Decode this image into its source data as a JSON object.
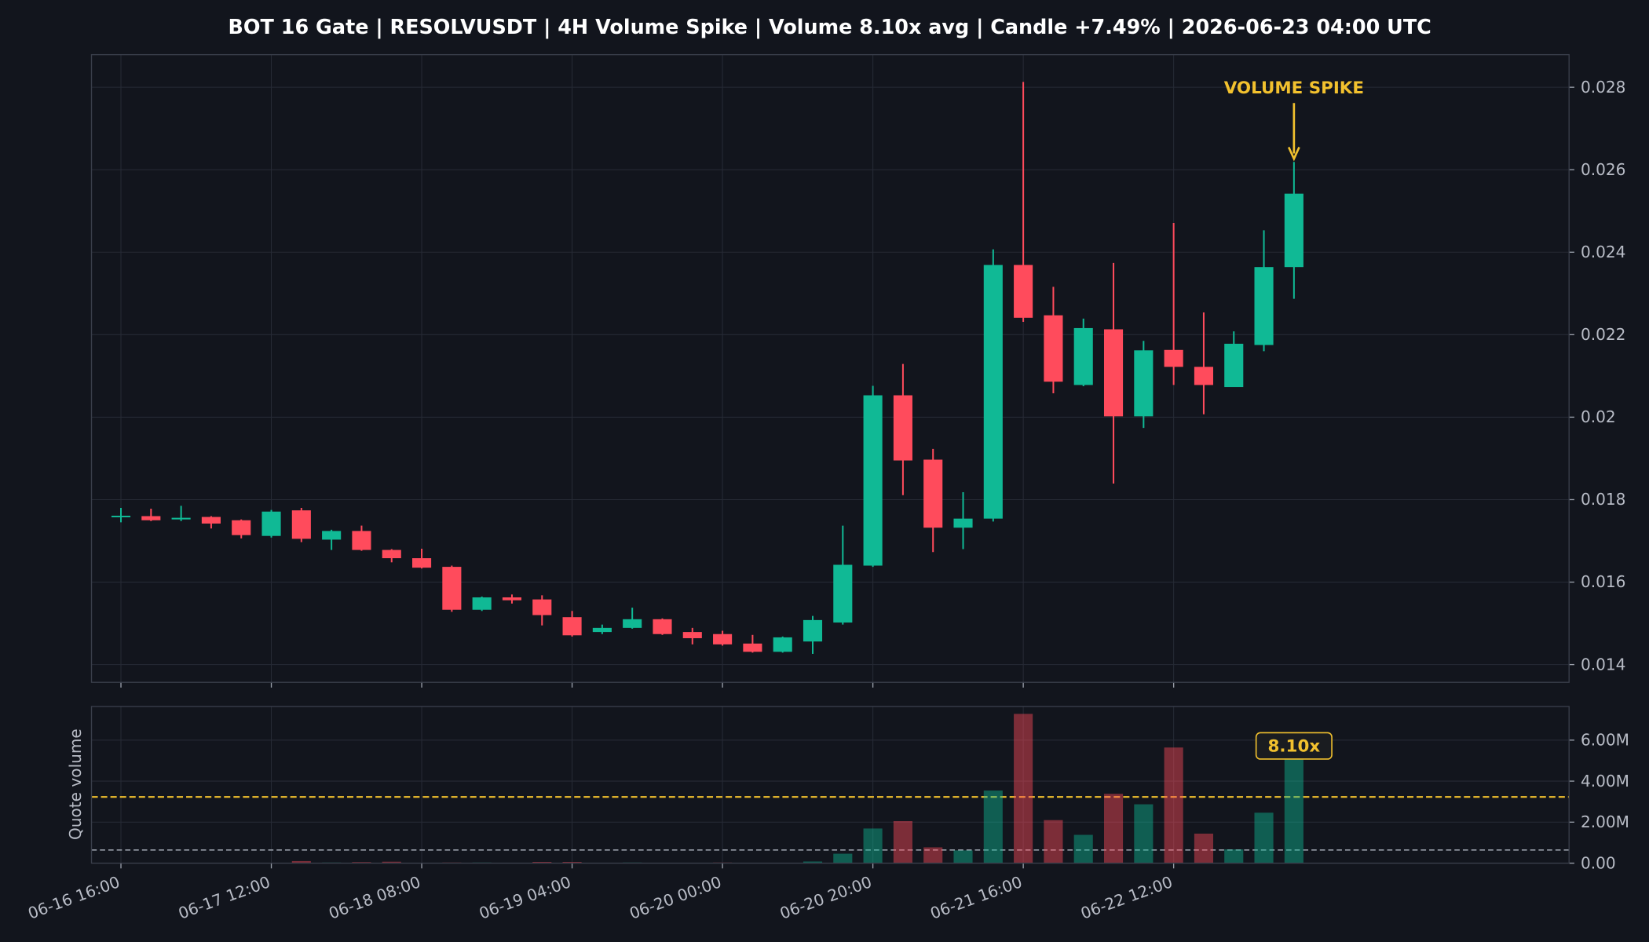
{
  "chart_data": {
    "type": "candlestick",
    "title": "BOT 16 Gate | RESOLVUSDT | 4H Volume Spike | Volume 8.10x avg | Candle +7.49% | 2026-06-23 04:00 UTC",
    "categories": [
      "06-16 16:00",
      null,
      null,
      null,
      null,
      "06-17 12:00",
      null,
      null,
      null,
      null,
      "06-18 08:00",
      null,
      null,
      null,
      null,
      "06-19 04:00",
      null,
      null,
      null,
      null,
      "06-20 00:00",
      null,
      null,
      null,
      null,
      "06-20 20:00",
      null,
      null,
      null,
      null,
      "06-21 16:00",
      null,
      null,
      null,
      null,
      "06-22 12:00",
      null,
      null,
      null,
      null
    ],
    "open": [
      0.01759,
      0.0176,
      0.01752,
      0.01758,
      0.0175,
      0.01712,
      0.01774,
      0.01703,
      0.01724,
      0.01678,
      0.01658,
      0.01637,
      0.01533,
      0.01563,
      0.01558,
      0.01515,
      0.01479,
      0.01489,
      0.0151,
      0.01479,
      0.01474,
      0.01451,
      0.01431,
      0.01456,
      0.01502,
      0.0164,
      0.02053,
      0.01897,
      0.01732,
      0.01754,
      0.02369,
      0.02247,
      0.02078,
      0.02213,
      0.02002,
      0.02163,
      0.02122,
      0.02073,
      0.02175,
      0.02364
    ],
    "high": [
      0.0178,
      0.01778,
      0.01785,
      0.0176,
      0.01752,
      0.01775,
      0.0178,
      0.01727,
      0.01737,
      0.0168,
      0.01681,
      0.0164,
      0.01565,
      0.0157,
      0.01568,
      0.0153,
      0.01497,
      0.01538,
      0.01512,
      0.01489,
      0.01482,
      0.01472,
      0.01468,
      0.01518,
      0.01737,
      0.02076,
      0.02129,
      0.01923,
      0.01818,
      0.02407,
      0.02813,
      0.02316,
      0.02239,
      0.02374,
      0.02185,
      0.02471,
      0.02254,
      0.02208,
      0.02453,
      0.02619
    ],
    "low": [
      0.01745,
      0.01748,
      0.01748,
      0.0173,
      0.01706,
      0.01708,
      0.01697,
      0.01678,
      0.01676,
      0.01648,
      0.01633,
      0.01528,
      0.0153,
      0.01548,
      0.01495,
      0.01468,
      0.01474,
      0.01487,
      0.01472,
      0.01449,
      0.01446,
      0.01429,
      0.01429,
      0.01426,
      0.01497,
      0.01637,
      0.01811,
      0.01673,
      0.0168,
      0.01747,
      0.02231,
      0.02058,
      0.02075,
      0.01839,
      0.01974,
      0.02078,
      0.02007,
      0.02073,
      0.0216,
      0.02287
    ],
    "close": [
      0.01761,
      0.0175,
      0.01756,
      0.01742,
      0.01714,
      0.01771,
      0.01705,
      0.01724,
      0.01678,
      0.01658,
      0.01635,
      0.01533,
      0.01563,
      0.01556,
      0.0152,
      0.01471,
      0.01489,
      0.0151,
      0.01474,
      0.01464,
      0.01449,
      0.01431,
      0.01466,
      0.01508,
      0.01642,
      0.02053,
      0.01895,
      0.01732,
      0.01754,
      0.02369,
      0.02241,
      0.02086,
      0.02216,
      0.02002,
      0.02162,
      0.02122,
      0.02078,
      0.02178,
      0.02364,
      0.02542
    ],
    "ylim": [
      0.01357,
      0.02879
    ],
    "yticks": [
      0.014,
      0.016,
      0.018,
      0.02,
      0.022,
      0.024,
      0.026,
      0.028
    ],
    "grid": true,
    "colors": {
      "up": "#10b995",
      "down": "#ff4b5c",
      "threshold": "#f2c12e",
      "avg": "#9aa0ab"
    },
    "annotation": "VOLUME SPIKE",
    "volume": {
      "ylabel": "Quote volume",
      "values": [
        0.01,
        0.01,
        0.01,
        0.01,
        0.01,
        0.02,
        0.1,
        0.03,
        0.05,
        0.07,
        0.02,
        0.03,
        0.03,
        0.01,
        0.06,
        0.06,
        0.01,
        0.03,
        0.01,
        0.01,
        0.03,
        0.01,
        0.01,
        0.08,
        0.46,
        1.69,
        2.05,
        0.77,
        0.62,
        3.54,
        7.28,
        2.1,
        1.38,
        3.38,
        2.87,
        5.64,
        1.44,
        0.67,
        2.46,
        5.18
      ],
      "ylim": [
        0,
        7.64
      ],
      "yticks": [
        {
          "value": 0,
          "label": "0.00"
        },
        {
          "value": 2,
          "label": "2.00M"
        },
        {
          "value": 4,
          "label": "4.00M"
        },
        {
          "value": 6,
          "label": "6.00M"
        }
      ],
      "avg": 0.64,
      "threshold": 3.23,
      "spike_label": "8.10x"
    }
  }
}
